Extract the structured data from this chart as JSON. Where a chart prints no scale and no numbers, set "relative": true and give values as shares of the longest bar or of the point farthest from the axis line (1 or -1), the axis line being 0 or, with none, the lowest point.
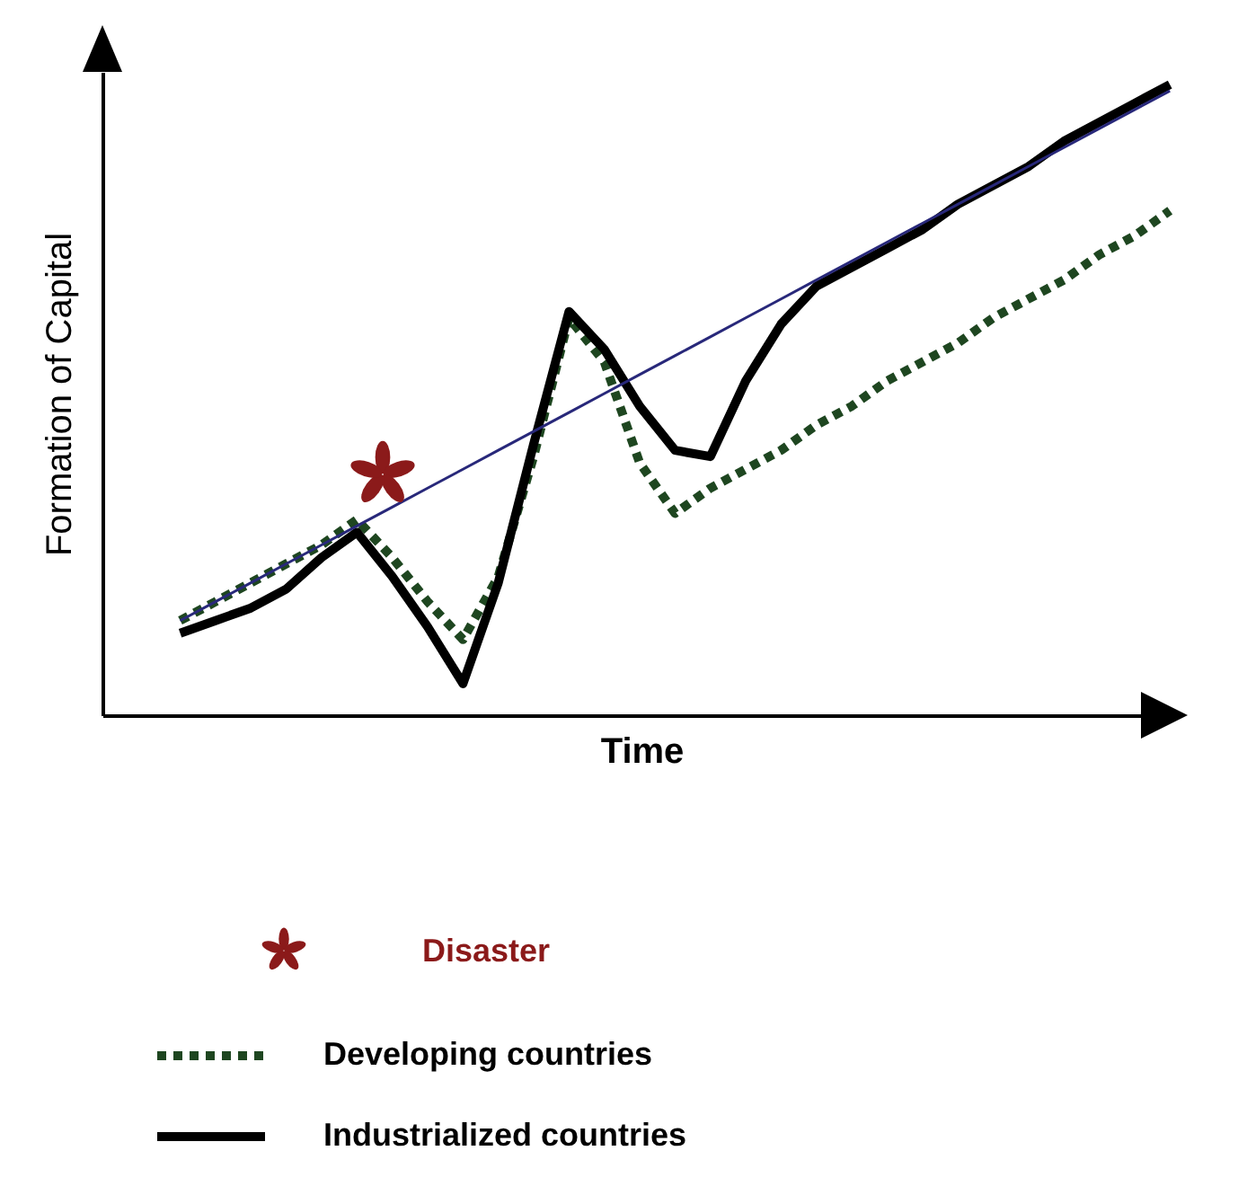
{
  "chart_data": {
    "type": "line",
    "relative": true,
    "xlabel": "Time",
    "ylabel": "Formation of Capital",
    "legend": "bottom",
    "annotations": [
      "Disaster"
    ],
    "categories": [
      null,
      null,
      null,
      null,
      null,
      null,
      null,
      null,
      null,
      null,
      null,
      null,
      null,
      null,
      null,
      null,
      null,
      null,
      null,
      null,
      null,
      null,
      null,
      null,
      null,
      null,
      null,
      null,
      null
    ],
    "series": [
      {
        "name": "Developing countries",
        "line_style": "dotted",
        "color": "#1e4620",
        "values": [
          0.15,
          0.18,
          0.21,
          0.24,
          0.27,
          0.31,
          0.25,
          0.18,
          0.12,
          0.22,
          0.41,
          0.63,
          0.56,
          0.4,
          0.32,
          0.36,
          0.39,
          0.42,
          0.46,
          0.49,
          0.53,
          0.56,
          0.59,
          0.63,
          0.66,
          0.69,
          0.73,
          0.76,
          0.8
        ]
      },
      {
        "name": "Industrialized countries",
        "line_style": "solid",
        "color": "#000000",
        "values": [
          0.13,
          0.15,
          0.17,
          0.2,
          0.25,
          0.29,
          0.22,
          0.14,
          0.05,
          0.21,
          0.43,
          0.64,
          0.58,
          0.49,
          0.42,
          0.41,
          0.53,
          0.62,
          0.68,
          0.71,
          0.74,
          0.77,
          0.81,
          0.84,
          0.87,
          0.91,
          0.94,
          0.97,
          1
        ]
      },
      {
        "line_style": "solid",
        "color": "#28287a",
        "values": [
          0.15,
          0.18,
          0.21,
          0.24,
          0.27,
          0.3,
          0.33,
          0.36,
          0.39,
          0.42,
          0.45,
          0.48,
          0.51,
          0.54,
          0.57,
          0.6,
          0.63,
          0.66,
          0.69,
          0.72,
          0.75,
          0.78,
          0.81,
          0.84,
          0.87,
          0.9,
          0.93,
          0.96,
          0.99
        ]
      }
    ]
  }
}
